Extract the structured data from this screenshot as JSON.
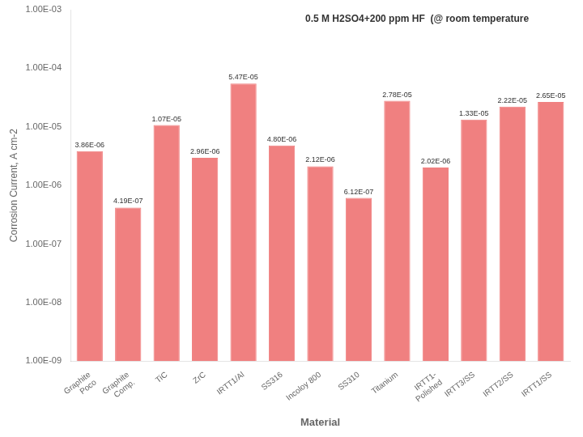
{
  "chart_data": {
    "type": "bar",
    "categories": [
      "Graphite\nPoco",
      "Graphite\nComp.",
      "TiC",
      "ZrC",
      "IRTT1/Al",
      "SS316",
      "Incoloy 800",
      "SS310",
      "Titanium",
      "IRTT1-\nPolished",
      "IRTT3/SS",
      "IRTT2/SS",
      "IRTT1/SS"
    ],
    "values": [
      3.86e-06,
      4.19e-07,
      1.07e-05,
      2.96e-06,
      5.47e-05,
      4.8e-06,
      2.12e-06,
      6.12e-07,
      2.78e-05,
      2.02e-06,
      1.33e-05,
      2.22e-05,
      2.65e-05
    ],
    "value_labels": [
      "3.86E-06",
      "4.19E-07",
      "1.07E-05",
      "2.96E-06",
      "5.47E-05",
      "4.80E-06",
      "2.12E-06",
      "6.12E-07",
      "2.78E-05",
      "2.02E-06",
      "1.33E-05",
      "2.22E-05",
      "2.65E-05"
    ],
    "data_labels": true,
    "color": "#F08080",
    "x_label": "Material",
    "y_label": "Corrosion Current, A cm-2",
    "annotations": [
      "0.5 M H2SO4+200 ppm HF  (@ room temperature"
    ],
    "log": "y",
    "ylim": [
      1e-09,
      0.001
    ],
    "yticks": [
      {
        "value": 1e-09,
        "label": "1.00E-09"
      },
      {
        "value": 1e-08,
        "label": "1.00E-08"
      },
      {
        "value": 1e-07,
        "label": "1.00E-07"
      },
      {
        "value": 1e-06,
        "label": "1.00E-06"
      },
      {
        "value": 1e-05,
        "label": "1.00E-05"
      },
      {
        "value": 0.0001,
        "label": "1.00E-04"
      },
      {
        "value": 0.001,
        "label": "1.00E-03"
      }
    ],
    "grid": false
  }
}
